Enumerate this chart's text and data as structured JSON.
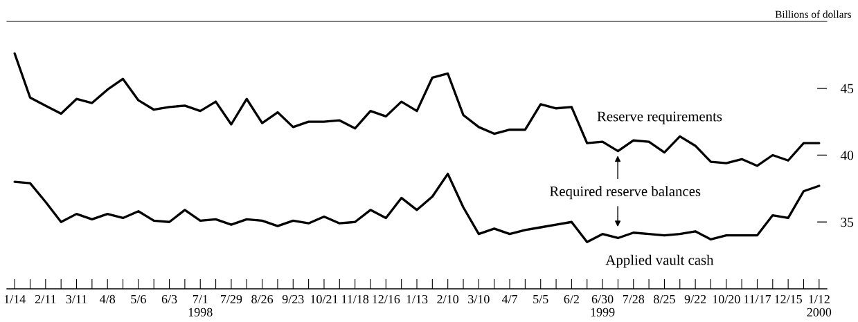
{
  "chart_data": {
    "type": "line",
    "ylabel": "Billions of dollars",
    "x": [
      "1998-01-14",
      "1998-01-28",
      "1998-02-11",
      "1998-02-25",
      "1998-03-11",
      "1998-03-25",
      "1998-04-08",
      "1998-04-22",
      "1998-05-06",
      "1998-05-20",
      "1998-06-03",
      "1998-06-17",
      "1998-07-01",
      "1998-07-15",
      "1998-07-29",
      "1998-08-12",
      "1998-08-26",
      "1998-09-09",
      "1998-09-23",
      "1998-10-07",
      "1998-10-21",
      "1998-11-04",
      "1998-11-18",
      "1998-12-02",
      "1998-12-16",
      "1998-12-30",
      "1999-01-13",
      "1999-01-27",
      "1999-02-10",
      "1999-02-24",
      "1999-03-10",
      "1999-03-24",
      "1999-04-07",
      "1999-04-21",
      "1999-05-05",
      "1999-05-19",
      "1999-06-02",
      "1999-06-16",
      "1999-06-30",
      "1999-07-14",
      "1999-07-28",
      "1999-08-11",
      "1999-08-25",
      "1999-09-08",
      "1999-09-22",
      "1999-10-06",
      "1999-10-20",
      "1999-11-03",
      "1999-11-17",
      "1999-12-01",
      "1999-12-15",
      "1999-12-29",
      "2000-01-12"
    ],
    "series": [
      {
        "name": "Reserve requirements",
        "color": "#000000",
        "values": [
          47.6,
          44.3,
          43.7,
          43.1,
          44.2,
          43.9,
          44.9,
          45.7,
          44.1,
          43.4,
          43.6,
          43.7,
          43.3,
          44.0,
          42.3,
          44.2,
          42.4,
          43.2,
          42.1,
          42.5,
          42.5,
          42.6,
          42.0,
          43.3,
          42.9,
          44.0,
          43.3,
          45.8,
          46.1,
          43.0,
          42.1,
          41.6,
          41.9,
          41.9,
          43.8,
          43.5,
          43.6,
          40.9,
          41.0,
          40.3,
          41.1,
          41.0,
          40.2,
          41.4,
          40.7,
          39.5,
          39.4,
          39.7,
          39.2,
          40.0,
          39.6,
          40.9,
          40.9
        ]
      },
      {
        "name": "Applied vault cash",
        "color": "#000000",
        "values": [
          38.0,
          37.9,
          36.5,
          35.0,
          35.6,
          35.2,
          35.6,
          35.3,
          35.8,
          35.1,
          35.0,
          35.9,
          35.1,
          35.2,
          34.8,
          35.2,
          35.1,
          34.7,
          35.1,
          34.9,
          35.4,
          34.9,
          35.0,
          35.9,
          35.3,
          36.8,
          35.9,
          36.9,
          38.6,
          36.1,
          34.1,
          34.5,
          34.1,
          34.4,
          34.6,
          34.8,
          35.0,
          33.5,
          34.1,
          33.8,
          34.2,
          34.1,
          34.0,
          34.1,
          34.3,
          33.7,
          34.0,
          34.0,
          34.0,
          35.5,
          35.3,
          37.3,
          37.7
        ]
      }
    ],
    "annotations": [
      "Required reserve balances"
    ],
    "xlim": [
      "1998-01-07",
      "2000-01-19"
    ],
    "xticks": [
      {
        "value": "1998-01-14",
        "label": "1/14"
      },
      {
        "value": "1998-01-28",
        "label": null
      },
      {
        "value": "1998-02-11",
        "label": "2/11"
      },
      {
        "value": "1998-02-25",
        "label": null
      },
      {
        "value": "1998-03-11",
        "label": "3/11"
      },
      {
        "value": "1998-03-25",
        "label": null
      },
      {
        "value": "1998-04-08",
        "label": "4/8"
      },
      {
        "value": "1998-04-22",
        "label": null
      },
      {
        "value": "1998-05-06",
        "label": "5/6"
      },
      {
        "value": "1998-05-20",
        "label": null
      },
      {
        "value": "1998-06-03",
        "label": "6/3"
      },
      {
        "value": "1998-06-17",
        "label": null
      },
      {
        "value": "1998-07-01",
        "label": "7/1\n1998"
      },
      {
        "value": "1998-07-15",
        "label": null
      },
      {
        "value": "1998-07-29",
        "label": "7/29"
      },
      {
        "value": "1998-08-12",
        "label": null
      },
      {
        "value": "1998-08-26",
        "label": "8/26"
      },
      {
        "value": "1998-09-09",
        "label": null
      },
      {
        "value": "1998-09-23",
        "label": "9/23"
      },
      {
        "value": "1998-10-07",
        "label": null
      },
      {
        "value": "1998-10-21",
        "label": "10/21"
      },
      {
        "value": "1998-11-04",
        "label": null
      },
      {
        "value": "1998-11-18",
        "label": "11/18"
      },
      {
        "value": "1998-12-02",
        "label": null
      },
      {
        "value": "1998-12-16",
        "label": "12/16"
      },
      {
        "value": "1998-12-30",
        "label": null
      },
      {
        "value": "1999-01-13",
        "label": "1/13"
      },
      {
        "value": "1999-01-27",
        "label": null
      },
      {
        "value": "1999-02-10",
        "label": "2/10"
      },
      {
        "value": "1999-02-24",
        "label": null
      },
      {
        "value": "1999-03-10",
        "label": "3/10"
      },
      {
        "value": "1999-03-24",
        "label": null
      },
      {
        "value": "1999-04-07",
        "label": "4/7"
      },
      {
        "value": "1999-04-21",
        "label": null
      },
      {
        "value": "1999-05-05",
        "label": "5/5"
      },
      {
        "value": "1999-05-19",
        "label": null
      },
      {
        "value": "1999-06-02",
        "label": "6/2"
      },
      {
        "value": "1999-06-16",
        "label": null
      },
      {
        "value": "1999-06-30",
        "label": "6/30\n1999"
      },
      {
        "value": "1999-07-14",
        "label": null
      },
      {
        "value": "1999-07-28",
        "label": "7/28"
      },
      {
        "value": "1999-08-11",
        "label": null
      },
      {
        "value": "1999-08-25",
        "label": "8/25"
      },
      {
        "value": "1999-09-08",
        "label": null
      },
      {
        "value": "1999-09-22",
        "label": "9/22"
      },
      {
        "value": "1999-10-06",
        "label": null
      },
      {
        "value": "1999-10-20",
        "label": "10/20"
      },
      {
        "value": "1999-11-03",
        "label": null
      },
      {
        "value": "1999-11-17",
        "label": "11/17"
      },
      {
        "value": "1999-12-01",
        "label": null
      },
      {
        "value": "1999-12-15",
        "label": "12/15"
      },
      {
        "value": "1999-12-29",
        "label": null
      },
      {
        "value": "2000-01-12",
        "label": "1/12\n2000"
      }
    ],
    "ylim": [
      30,
      50
    ],
    "yticks": [
      35,
      40,
      45
    ],
    "grid": false,
    "legend": false,
    "marker": "none",
    "line_style": "solid"
  }
}
